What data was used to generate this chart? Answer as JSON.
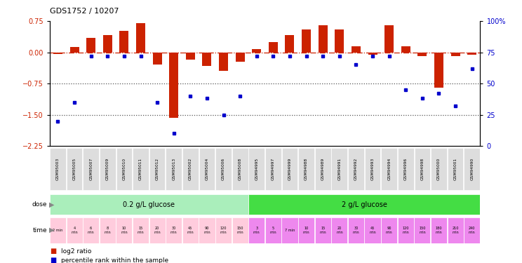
{
  "title": "GDS1752 / 10207",
  "samples": [
    "GSM95003",
    "GSM95005",
    "GSM95007",
    "GSM95009",
    "GSM95010",
    "GSM95011",
    "GSM95012",
    "GSM95013",
    "GSM95002",
    "GSM95004",
    "GSM95006",
    "GSM95008",
    "GSM94995",
    "GSM94997",
    "GSM94999",
    "GSM94988",
    "GSM94989",
    "GSM94991",
    "GSM94992",
    "GSM94993",
    "GSM94994",
    "GSM94996",
    "GSM94998",
    "GSM95000",
    "GSM95001",
    "GSM94990"
  ],
  "log2_ratio": [
    -0.04,
    0.13,
    0.35,
    0.42,
    0.52,
    0.7,
    -0.3,
    -1.58,
    -0.18,
    -0.32,
    -0.45,
    -0.22,
    0.08,
    0.25,
    0.42,
    0.55,
    0.65,
    0.55,
    0.15,
    -0.05,
    0.65,
    0.15,
    -0.1,
    -0.85,
    -0.1,
    -0.05
  ],
  "percentile": [
    20,
    35,
    72,
    72,
    72,
    72,
    35,
    10,
    40,
    38,
    25,
    40,
    72,
    72,
    72,
    72,
    72,
    72,
    65,
    72,
    72,
    45,
    38,
    42,
    32,
    62
  ],
  "dose_0_2_label": "0.2 g/L glucose",
  "dose_2_label": "2 g/L glucose",
  "dose_0_2_color": "#aaeebb",
  "dose_2_color": "#44dd44",
  "time_0_2_color": "#ffccdd",
  "time_2_color": "#ee88ee",
  "bar_color": "#cc2200",
  "dot_color": "#0000cc",
  "refline_color": "#cc2200",
  "dotted_color": "#555555",
  "ylim_left": [
    -2.25,
    0.75
  ],
  "ylim_right": [
    0,
    100
  ],
  "yticks_left": [
    0.75,
    0.0,
    -0.75,
    -1.5,
    -2.25
  ],
  "yticks_right": [
    100,
    75,
    50,
    25,
    0
  ],
  "hlines": [
    -0.75,
    -1.5
  ],
  "n_samples": 26,
  "n_dose_0_2": 12,
  "n_dose_2": 14,
  "time_labels_02": [
    "2 min",
    "4\nmin",
    "6\nmin",
    "8\nmin",
    "10\nmin",
    "15\nmin",
    "20\nmin",
    "30\nmin",
    "45\nmin",
    "90\nmin",
    "120\nmin",
    "150\nmin"
  ],
  "time_labels_2": [
    "3\nmin",
    "5\nmin",
    "7 min",
    "10\nmin",
    "15\nmin",
    "20\nmin",
    "30\nmin",
    "45\nmin",
    "90\nmin",
    "120\nmin",
    "150\nmin",
    "180\nmin",
    "210\nmin",
    "240\nmin"
  ]
}
